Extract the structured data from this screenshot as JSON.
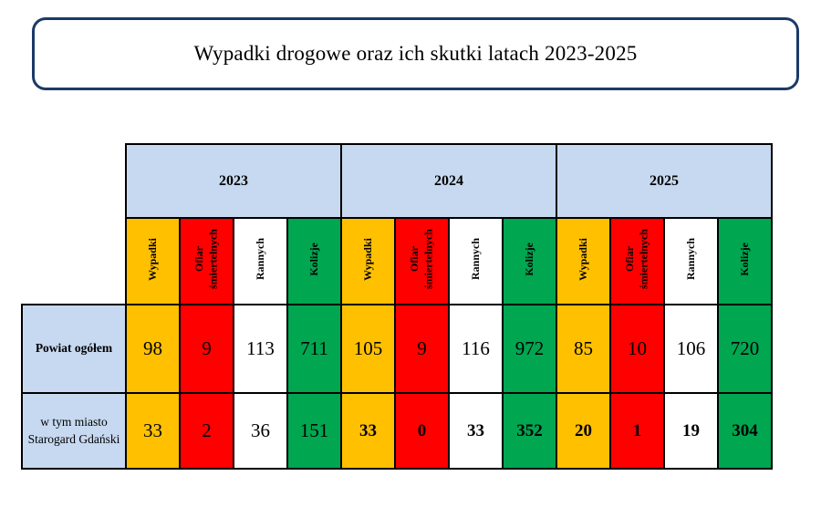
{
  "title": "Wypadki drogowe oraz ich skutki latach 2023-2025",
  "colors": {
    "header_blue": "#C6D9F0",
    "accidents_orange": "#FFC000",
    "fatalities_red": "#FE0000",
    "injured_white": "#FFFFFF",
    "collisions_green": "#00A650",
    "title_border_navy": "#1B3A68",
    "grid_black": "#000000"
  },
  "table": {
    "years": [
      "2023",
      "2024",
      "2025"
    ],
    "categories": [
      {
        "label": "Wypadki",
        "color_key": "accidents_orange"
      },
      {
        "label": "Ofiar śmiertelnych",
        "color_key": "fatalities_red"
      },
      {
        "label": "Rannych",
        "color_key": "injured_white"
      },
      {
        "label": "Kolizje",
        "color_key": "collisions_green"
      }
    ],
    "rows": [
      {
        "label": "Powiat ogółem",
        "label_bold": true,
        "cells": [
          {
            "v": "98",
            "b": false
          },
          {
            "v": "9",
            "b": false
          },
          {
            "v": "113",
            "b": false
          },
          {
            "v": "711",
            "b": false
          },
          {
            "v": "105",
            "b": false
          },
          {
            "v": "9",
            "b": false
          },
          {
            "v": "116",
            "b": false
          },
          {
            "v": "972",
            "b": false
          },
          {
            "v": "85",
            "b": false
          },
          {
            "v": "10",
            "b": false
          },
          {
            "v": "106",
            "b": false
          },
          {
            "v": "720",
            "b": false
          }
        ]
      },
      {
        "label": "w tym miasto Starogard Gdański",
        "label_bold": false,
        "cells": [
          {
            "v": "33",
            "b": false
          },
          {
            "v": "2",
            "b": false
          },
          {
            "v": "36",
            "b": false
          },
          {
            "v": "151",
            "b": false
          },
          {
            "v": "33",
            "b": true
          },
          {
            "v": "0",
            "b": true
          },
          {
            "v": "33",
            "b": true
          },
          {
            "v": "352",
            "b": true
          },
          {
            "v": "20",
            "b": true
          },
          {
            "v": "1",
            "b": true
          },
          {
            "v": "19",
            "b": true
          },
          {
            "v": "304",
            "b": true
          }
        ]
      }
    ]
  },
  "chart_data": {
    "type": "table",
    "title": "Wypadki drogowe oraz ich skutki latach 2023-2025",
    "column_groups": [
      "2023",
      "2024",
      "2025"
    ],
    "columns_per_group": [
      "Wypadki",
      "Ofiar śmiertelnych",
      "Rannych",
      "Kolizje"
    ],
    "rows": [
      {
        "name": "Powiat ogółem",
        "values_2023": [
          98,
          9,
          113,
          711
        ],
        "values_2024": [
          105,
          9,
          116,
          972
        ],
        "values_2025": [
          85,
          10,
          106,
          720
        ]
      },
      {
        "name": "w tym miasto Starogard Gdański",
        "values_2023": [
          33,
          2,
          36,
          151
        ],
        "values_2024": [
          33,
          0,
          33,
          352
        ],
        "values_2025": [
          20,
          1,
          19,
          304
        ]
      }
    ]
  }
}
